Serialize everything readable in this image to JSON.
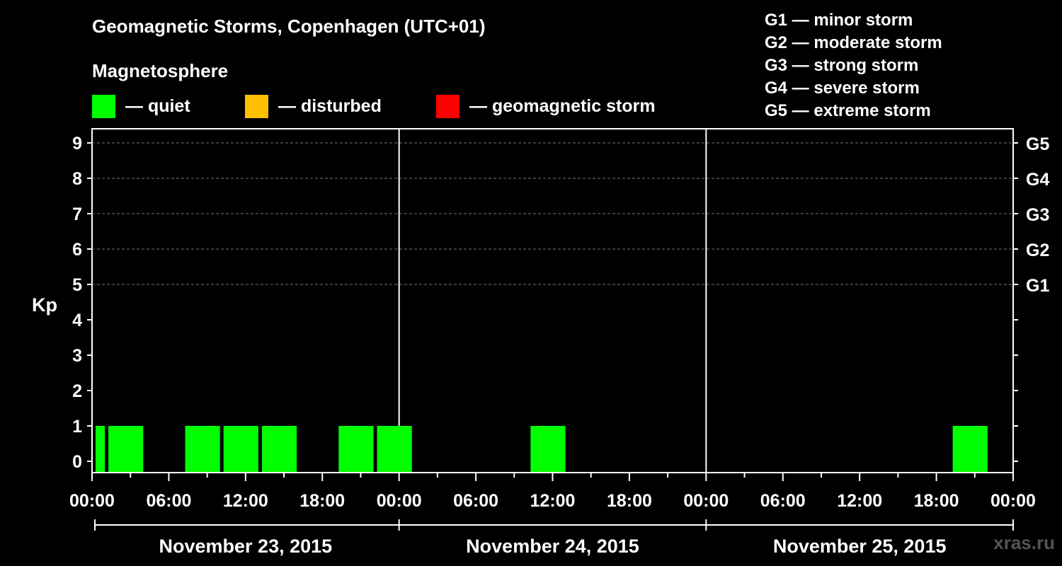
{
  "header": {
    "title": "Geomagnetic Storms, Copenhagen (UTC+01)",
    "section_label": "Magnetosphere"
  },
  "legend": [
    {
      "label": "— quiet",
      "color": "#00ff00"
    },
    {
      "label": "— disturbed",
      "color": "#ffbf00"
    },
    {
      "label": "— geomagnetic storm",
      "color": "#ff0000"
    }
  ],
  "storm_scale": [
    "G1 — minor storm",
    "G2 — moderate storm",
    "G3 — strong storm",
    "G4 — severe storm",
    "G5 — extreme storm"
  ],
  "watermark": "xras.ru",
  "chart_data": {
    "type": "bar",
    "ylabel": "Kp",
    "ylim": [
      0,
      9
    ],
    "y_ticks": [
      "0",
      "1",
      "2",
      "3",
      "4",
      "5",
      "6",
      "7",
      "8",
      "9"
    ],
    "right_axis_labels": [
      {
        "level": 5,
        "label": "G1"
      },
      {
        "level": 6,
        "label": "G2"
      },
      {
        "level": 7,
        "label": "G3"
      },
      {
        "level": 8,
        "label": "G4"
      },
      {
        "level": 9,
        "label": "G5"
      }
    ],
    "x_tick_labels": [
      "00:00",
      "06:00",
      "12:00",
      "18:00",
      "00:00",
      "06:00",
      "12:00",
      "18:00",
      "00:00",
      "06:00",
      "12:00",
      "18:00",
      "00:00"
    ],
    "dates": [
      "November 23, 2015",
      "November 24, 2015",
      "November 25, 2015"
    ],
    "grid": "dashed horizontal at Kp 5–9",
    "bars_note": "3-hour Kp intervals; hours measured from 00:00 Nov 23",
    "bars": [
      {
        "start_hour": 0.0,
        "end_hour": 1.0,
        "kp": 1,
        "status": "quiet"
      },
      {
        "start_hour": 1.0,
        "end_hour": 4.0,
        "kp": 1,
        "status": "quiet"
      },
      {
        "start_hour": 7.0,
        "end_hour": 10.0,
        "kp": 1,
        "status": "quiet"
      },
      {
        "start_hour": 10.0,
        "end_hour": 13.0,
        "kp": 1,
        "status": "quiet"
      },
      {
        "start_hour": 13.0,
        "end_hour": 16.0,
        "kp": 1,
        "status": "quiet"
      },
      {
        "start_hour": 19.0,
        "end_hour": 22.0,
        "kp": 1,
        "status": "quiet"
      },
      {
        "start_hour": 22.0,
        "end_hour": 25.0,
        "kp": 1,
        "status": "quiet"
      },
      {
        "start_hour": 34.0,
        "end_hour": 37.0,
        "kp": 1,
        "status": "quiet"
      },
      {
        "start_hour": 67.0,
        "end_hour": 70.0,
        "kp": 1,
        "status": "quiet"
      }
    ]
  }
}
